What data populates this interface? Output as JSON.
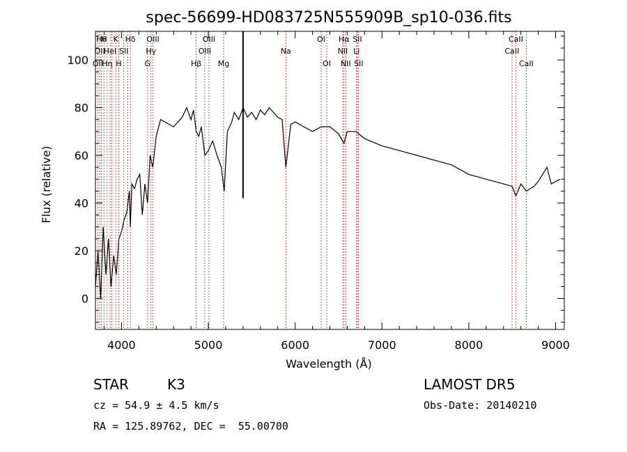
{
  "chart_data": {
    "type": "line",
    "title": "spec-56699-HD083725N555909B_sp10-036.fits",
    "xlabel": "Wavelength (Å)",
    "ylabel": "Flux (relative)",
    "xlim": [
      3700,
      9100
    ],
    "ylim": [
      -13,
      112
    ],
    "xticks": [
      4000,
      5000,
      6000,
      7000,
      8000,
      9000
    ],
    "yticks": [
      0,
      20,
      40,
      60,
      80,
      100
    ],
    "grid": false,
    "series": [
      {
        "x": [
          3700,
          3730,
          3760,
          3790,
          3820,
          3850,
          3880,
          3910,
          3940,
          3970,
          4000,
          4030,
          4060,
          4090,
          4102,
          4120,
          4150,
          4180,
          4210,
          4240,
          4270,
          4300,
          4330,
          4360,
          4400,
          4450,
          4500,
          4550,
          4600,
          4650,
          4700,
          4750,
          4800,
          4830,
          4861,
          4890,
          4920,
          4960,
          5000,
          5050,
          5100,
          5150,
          5183,
          5220,
          5270,
          5300,
          5350,
          5400,
          5450,
          5500,
          5550,
          5600,
          5650,
          5700,
          5750,
          5800,
          5850,
          5893,
          5950,
          6000,
          6100,
          6200,
          6300,
          6400,
          6500,
          6563,
          6600,
          6700,
          6800,
          7000,
          7200,
          7400,
          7600,
          7800,
          8000,
          8200,
          8400,
          8498,
          8542,
          8600,
          8662,
          8750,
          8800,
          8850,
          8900,
          8950,
          9000,
          9050
        ],
        "y": [
          5,
          20,
          0,
          30,
          10,
          25,
          5,
          18,
          10,
          25,
          28,
          33,
          36,
          45,
          30,
          48,
          46,
          50,
          52,
          35,
          48,
          40,
          60,
          55,
          68,
          75,
          74,
          73,
          72,
          74,
          76,
          80,
          75,
          79,
          70,
          68,
          72,
          60,
          62,
          66,
          60,
          55,
          45,
          70,
          74,
          78,
          75,
          80,
          76,
          78,
          75,
          79,
          77,
          80,
          78,
          76,
          75,
          55,
          73,
          74,
          72,
          70,
          72,
          72,
          69,
          65,
          70,
          70,
          67,
          64,
          62,
          60,
          58,
          56,
          52,
          50,
          48,
          47,
          43,
          48,
          45,
          47,
          49,
          52,
          55,
          48,
          49,
          50
        ]
      }
    ],
    "spikes": [
      {
        "x": 5400,
        "y_from": 42,
        "y_to": 112
      }
    ],
    "lines": [
      {
        "x": 3727,
        "label": "OII",
        "row": 2
      },
      {
        "x": 3750,
        "label": "OII",
        "row": 1
      },
      {
        "x": 3771,
        "label": "Hθ",
        "row": 0
      },
      {
        "x": 3798,
        "label": "H",
        "row": 0
      },
      {
        "x": 3835,
        "label": "Hη",
        "row": 2
      },
      {
        "x": 3869,
        "label": "HeI",
        "row": 1
      },
      {
        "x": 3889,
        "label": "",
        "row": 0
      },
      {
        "x": 3934,
        "label": "K",
        "row": 0
      },
      {
        "x": 3968,
        "label": "H",
        "row": 2
      },
      {
        "x": 4026,
        "label": "SII",
        "row": 1
      },
      {
        "x": 4069,
        "label": "",
        "row": 0
      },
      {
        "x": 4102,
        "label": "Hδ",
        "row": 0
      },
      {
        "x": 4300,
        "label": "G",
        "row": 2
      },
      {
        "x": 4340,
        "label": "Hγ",
        "row": 1
      },
      {
        "x": 4363,
        "label": "OIII",
        "row": 0
      },
      {
        "x": 4861,
        "label": "Hβ",
        "row": 2
      },
      {
        "x": 4959,
        "label": "OIII",
        "row": 1
      },
      {
        "x": 5007,
        "label": "OIII",
        "row": 0
      },
      {
        "x": 5176,
        "label": "Mg",
        "row": 2
      },
      {
        "x": 5893,
        "label": "Na",
        "row": 1
      },
      {
        "x": 6300,
        "label": "OI",
        "row": 0
      },
      {
        "x": 6364,
        "label": "OI",
        "row": 2
      },
      {
        "x": 6548,
        "label": "NII",
        "row": 1
      },
      {
        "x": 6563,
        "label": "Hα",
        "row": 0
      },
      {
        "x": 6583,
        "label": "NII",
        "row": 2
      },
      {
        "x": 6707,
        "label": "Li",
        "row": 1
      },
      {
        "x": 6716,
        "label": "SII",
        "row": 0
      },
      {
        "x": 6731,
        "label": "SII",
        "row": 2
      },
      {
        "x": 8498,
        "label": "CaII",
        "row": 1
      },
      {
        "x": 8542,
        "label": "CaII",
        "row": 0
      },
      {
        "x": 8662,
        "label": "CaII",
        "row": 2
      }
    ]
  },
  "info": {
    "object_class": "STAR",
    "subclass": "K3",
    "survey": "LAMOST DR5",
    "cz": "cz = 54.9 ± 4.5 km/s",
    "obs_date": "Obs-Date: 20140210",
    "coords": "RA = 125.89762, DEC =  55.00700"
  },
  "colors": {
    "spectrum": "#000000",
    "line_marker": "#b22222",
    "text": "#000000",
    "background": "#ffffff"
  }
}
